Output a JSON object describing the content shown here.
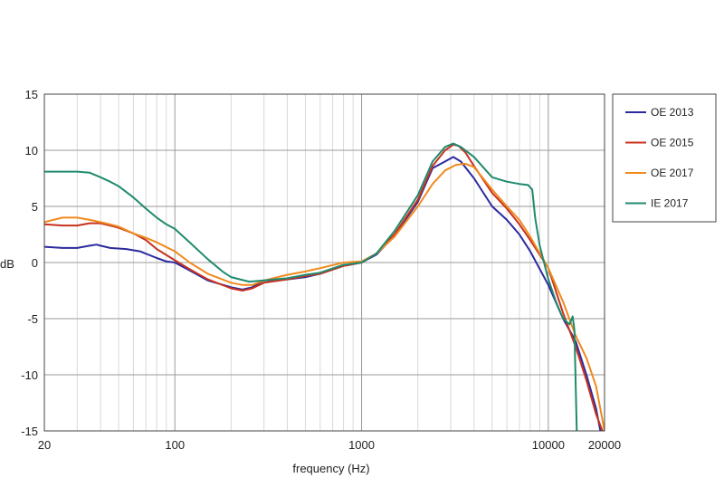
{
  "chart_data": {
    "type": "line",
    "title": "",
    "xlabel": "frequency (Hz)",
    "ylabel": "dB",
    "xscale": "log",
    "xlim": [
      20,
      20000
    ],
    "ylim": [
      -15,
      15
    ],
    "xticks": [
      20,
      100,
      1000,
      10000,
      20000
    ],
    "xtick_labels": [
      "20",
      "100",
      "1000",
      "10000",
      "20000"
    ],
    "yticks": [
      15,
      10,
      5,
      0,
      -5,
      -10,
      -15
    ],
    "ytick_labels": [
      "15",
      "10",
      "5",
      "0",
      "-5",
      "-10",
      "-15"
    ],
    "grid": true,
    "legend_position": "right",
    "series": [
      {
        "name": "OE 2013",
        "color": "#2b2a9e",
        "points": [
          [
            20,
            1.4
          ],
          [
            25,
            1.3
          ],
          [
            30,
            1.3
          ],
          [
            35,
            1.5
          ],
          [
            38,
            1.6
          ],
          [
            40,
            1.5
          ],
          [
            45,
            1.3
          ],
          [
            55,
            1.2
          ],
          [
            65,
            1.0
          ],
          [
            80,
            0.4
          ],
          [
            90,
            0.1
          ],
          [
            100,
            0.0
          ],
          [
            120,
            -0.7
          ],
          [
            150,
            -1.6
          ],
          [
            200,
            -2.2
          ],
          [
            230,
            -2.4
          ],
          [
            260,
            -2.2
          ],
          [
            300,
            -1.6
          ],
          [
            400,
            -1.5
          ],
          [
            500,
            -1.3
          ],
          [
            600,
            -1.0
          ],
          [
            800,
            -0.3
          ],
          [
            1000,
            0.0
          ],
          [
            1200,
            0.7
          ],
          [
            1500,
            2.4
          ],
          [
            2000,
            5.4
          ],
          [
            2400,
            8.4
          ],
          [
            2800,
            9.0
          ],
          [
            3100,
            9.4
          ],
          [
            3400,
            9.0
          ],
          [
            4000,
            7.5
          ],
          [
            5000,
            5.0
          ],
          [
            6000,
            3.8
          ],
          [
            7000,
            2.5
          ],
          [
            8000,
            1.0
          ],
          [
            10000,
            -2.0
          ],
          [
            12000,
            -5.0
          ],
          [
            14000,
            -7.0
          ],
          [
            16000,
            -10.0
          ],
          [
            18000,
            -13.0
          ],
          [
            19000,
            -15.0
          ]
        ]
      },
      {
        "name": "OE 2015",
        "color": "#c8321e",
        "points": [
          [
            20,
            3.4
          ],
          [
            25,
            3.3
          ],
          [
            30,
            3.3
          ],
          [
            35,
            3.5
          ],
          [
            40,
            3.5
          ],
          [
            45,
            3.3
          ],
          [
            50,
            3.1
          ],
          [
            60,
            2.6
          ],
          [
            70,
            2.0
          ],
          [
            80,
            1.2
          ],
          [
            100,
            0.2
          ],
          [
            120,
            -0.6
          ],
          [
            150,
            -1.5
          ],
          [
            200,
            -2.3
          ],
          [
            230,
            -2.5
          ],
          [
            260,
            -2.3
          ],
          [
            300,
            -1.8
          ],
          [
            400,
            -1.5
          ],
          [
            500,
            -1.2
          ],
          [
            600,
            -1.0
          ],
          [
            800,
            -0.3
          ],
          [
            1000,
            0.0
          ],
          [
            1200,
            0.8
          ],
          [
            1500,
            2.5
          ],
          [
            2000,
            5.6
          ],
          [
            2400,
            8.6
          ],
          [
            2800,
            10.0
          ],
          [
            3100,
            10.5
          ],
          [
            3300,
            10.4
          ],
          [
            3600,
            9.8
          ],
          [
            4000,
            8.6
          ],
          [
            5000,
            6.2
          ],
          [
            6000,
            4.8
          ],
          [
            7000,
            3.4
          ],
          [
            8000,
            2.0
          ],
          [
            10000,
            -0.5
          ],
          [
            12000,
            -4.5
          ],
          [
            14000,
            -7.5
          ],
          [
            16000,
            -10.5
          ],
          [
            18000,
            -13.5
          ],
          [
            19500,
            -15.0
          ]
        ]
      },
      {
        "name": "OE 2017",
        "color": "#f08a1e",
        "points": [
          [
            20,
            3.6
          ],
          [
            25,
            4.0
          ],
          [
            30,
            4.0
          ],
          [
            35,
            3.8
          ],
          [
            40,
            3.6
          ],
          [
            45,
            3.4
          ],
          [
            50,
            3.2
          ],
          [
            60,
            2.6
          ],
          [
            70,
            2.2
          ],
          [
            80,
            1.8
          ],
          [
            100,
            1.0
          ],
          [
            120,
            0.0
          ],
          [
            150,
            -1.0
          ],
          [
            200,
            -1.8
          ],
          [
            230,
            -2.0
          ],
          [
            260,
            -2.0
          ],
          [
            300,
            -1.6
          ],
          [
            400,
            -1.1
          ],
          [
            500,
            -0.8
          ],
          [
            600,
            -0.5
          ],
          [
            800,
            0.0
          ],
          [
            1000,
            0.1
          ],
          [
            1200,
            0.8
          ],
          [
            1500,
            2.3
          ],
          [
            2000,
            5.0
          ],
          [
            2400,
            7.0
          ],
          [
            2800,
            8.2
          ],
          [
            3200,
            8.7
          ],
          [
            3600,
            8.8
          ],
          [
            4000,
            8.5
          ],
          [
            5000,
            6.5
          ],
          [
            6000,
            5.0
          ],
          [
            7000,
            3.8
          ],
          [
            8000,
            2.3
          ],
          [
            10000,
            -0.5
          ],
          [
            12000,
            -3.5
          ],
          [
            14000,
            -6.5
          ],
          [
            16000,
            -8.5
          ],
          [
            18000,
            -11.0
          ],
          [
            20000,
            -15.0
          ]
        ]
      },
      {
        "name": "IE 2017",
        "color": "#1f8a6e",
        "points": [
          [
            20,
            8.1
          ],
          [
            25,
            8.1
          ],
          [
            30,
            8.1
          ],
          [
            35,
            8.0
          ],
          [
            40,
            7.6
          ],
          [
            45,
            7.2
          ],
          [
            50,
            6.8
          ],
          [
            60,
            5.8
          ],
          [
            70,
            4.8
          ],
          [
            80,
            4.0
          ],
          [
            90,
            3.4
          ],
          [
            100,
            3.0
          ],
          [
            120,
            1.8
          ],
          [
            150,
            0.3
          ],
          [
            180,
            -0.8
          ],
          [
            200,
            -1.3
          ],
          [
            250,
            -1.7
          ],
          [
            300,
            -1.6
          ],
          [
            400,
            -1.4
          ],
          [
            500,
            -1.1
          ],
          [
            600,
            -0.9
          ],
          [
            800,
            -0.2
          ],
          [
            1000,
            0.0
          ],
          [
            1200,
            0.8
          ],
          [
            1500,
            2.8
          ],
          [
            2000,
            6.0
          ],
          [
            2400,
            9.0
          ],
          [
            2800,
            10.3
          ],
          [
            3100,
            10.6
          ],
          [
            3400,
            10.3
          ],
          [
            4000,
            9.4
          ],
          [
            5000,
            7.6
          ],
          [
            6000,
            7.2
          ],
          [
            7000,
            7.0
          ],
          [
            7800,
            6.9
          ],
          [
            8200,
            6.5
          ],
          [
            8500,
            4.0
          ],
          [
            9000,
            1.5
          ],
          [
            10000,
            -1.5
          ],
          [
            11000,
            -3.5
          ],
          [
            12000,
            -5.0
          ],
          [
            13000,
            -5.5
          ],
          [
            13500,
            -4.8
          ],
          [
            13800,
            -6.0
          ],
          [
            14200,
            -15.0
          ]
        ]
      }
    ]
  }
}
